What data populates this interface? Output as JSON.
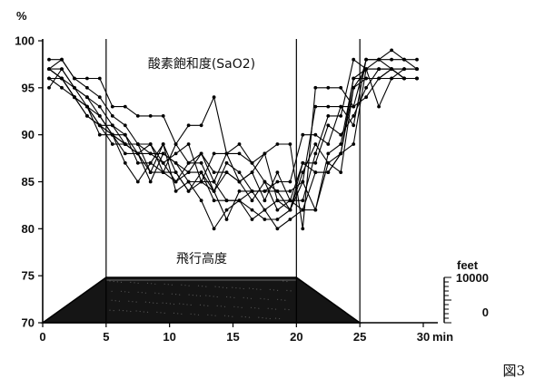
{
  "figure_label": "図3",
  "chart_data": [
    {
      "type": "line",
      "title": "酸素飽和度(SaO2)",
      "ylabel": "%",
      "xlabel": "min",
      "xlim": [
        0,
        30
      ],
      "ylim": [
        70,
        100
      ],
      "xticks": [
        0,
        5,
        10,
        15,
        20,
        25,
        30
      ],
      "yticks": [
        70,
        75,
        80,
        85,
        90,
        95,
        100
      ],
      "vertical_markers": [
        5,
        20,
        25
      ],
      "grid": false,
      "x": [
        0.5,
        1.5,
        2.5,
        3.5,
        4.5,
        5.5,
        6.5,
        7.5,
        8.5,
        9.5,
        10.5,
        11.5,
        12.5,
        13.5,
        14.5,
        15.5,
        16.5,
        17.5,
        18.5,
        19.5,
        20.5,
        21.5,
        22.5,
        23.5,
        24.5,
        25.5,
        26.5,
        27.5,
        28.5,
        29.5
      ],
      "series": [
        {
          "values": [
            98,
            98,
            96,
            96,
            96,
            93,
            93,
            92,
            92,
            92,
            89,
            91,
            91,
            94,
            88,
            88,
            87,
            88,
            89,
            89,
            80,
            95,
            95,
            95,
            93,
            98,
            98,
            99,
            98,
            98
          ]
        },
        {
          "values": [
            97,
            98,
            96,
            95,
            94,
            92,
            91,
            89,
            89,
            87,
            88,
            89,
            85,
            88,
            88,
            89,
            87,
            85,
            84,
            84,
            85,
            93,
            93,
            93,
            91,
            98,
            98,
            98,
            98,
            97
          ]
        },
        {
          "values": [
            97,
            97,
            95,
            94,
            93,
            91,
            90,
            88,
            88,
            88,
            87,
            86,
            88,
            86,
            86,
            85,
            86,
            88,
            83,
            83,
            83,
            88,
            92,
            92,
            98,
            97,
            98,
            97,
            96,
            96
          ]
        },
        {
          "values": [
            96,
            96,
            94,
            93,
            92,
            90,
            90,
            87,
            87,
            86,
            85,
            87,
            87,
            84,
            87,
            86,
            84,
            84,
            84,
            82,
            87,
            87,
            91,
            90,
            92,
            95,
            97,
            97,
            97,
            97
          ]
        },
        {
          "values": [
            96,
            95,
            94,
            93,
            91,
            90,
            88,
            88,
            85,
            88,
            87,
            85,
            85,
            85,
            83,
            83,
            84,
            84,
            85,
            85,
            90,
            90,
            89,
            93,
            93,
            94,
            96,
            97,
            96,
            96
          ]
        },
        {
          "values": [
            95,
            97,
            95,
            94,
            92,
            90,
            89,
            89,
            88,
            87,
            85,
            86,
            86,
            84,
            86,
            85,
            83,
            85,
            82,
            83,
            87,
            86,
            86,
            88,
            96,
            96,
            96,
            96,
            97,
            97
          ]
        },
        {
          "values": [
            97,
            96,
            94,
            92,
            91,
            89,
            89,
            89,
            86,
            86,
            86,
            84,
            86,
            83,
            83,
            83,
            81,
            82,
            83,
            82,
            86,
            89,
            87,
            86,
            95,
            96,
            96,
            97,
            96,
            96
          ]
        },
        {
          "values": [
            97,
            96,
            94,
            93,
            90,
            90,
            87,
            85,
            87,
            89,
            84,
            85,
            83,
            80,
            82,
            83,
            82,
            81,
            81,
            82,
            85,
            82,
            88,
            89,
            96,
            97,
            93,
            96,
            96,
            96
          ]
        },
        {
          "values": [
            96,
            96,
            95,
            93,
            91,
            91,
            89,
            88,
            86,
            89,
            86,
            84,
            85,
            84,
            81,
            84,
            84,
            82,
            80,
            81,
            82,
            82,
            87,
            88,
            89,
            97,
            97,
            97,
            97,
            97
          ]
        },
        {
          "values": [
            97,
            96,
            94,
            92,
            91,
            90,
            89,
            88,
            89,
            86,
            89,
            87,
            88,
            85,
            88,
            85,
            86,
            83,
            86,
            83,
            82,
            86,
            86,
            88,
            95,
            97,
            97,
            97,
            96,
            96
          ]
        }
      ]
    },
    {
      "type": "area",
      "title": "飛行高度",
      "unit": "feet",
      "right_axis_ticks": [
        {
          "value": 10000,
          "label": "10000"
        },
        {
          "value": 0,
          "label": "0"
        }
      ],
      "points": [
        [
          0,
          0
        ],
        [
          5,
          10000
        ],
        [
          20,
          10000
        ],
        [
          25,
          0
        ]
      ],
      "fill_color": "#151515"
    }
  ]
}
